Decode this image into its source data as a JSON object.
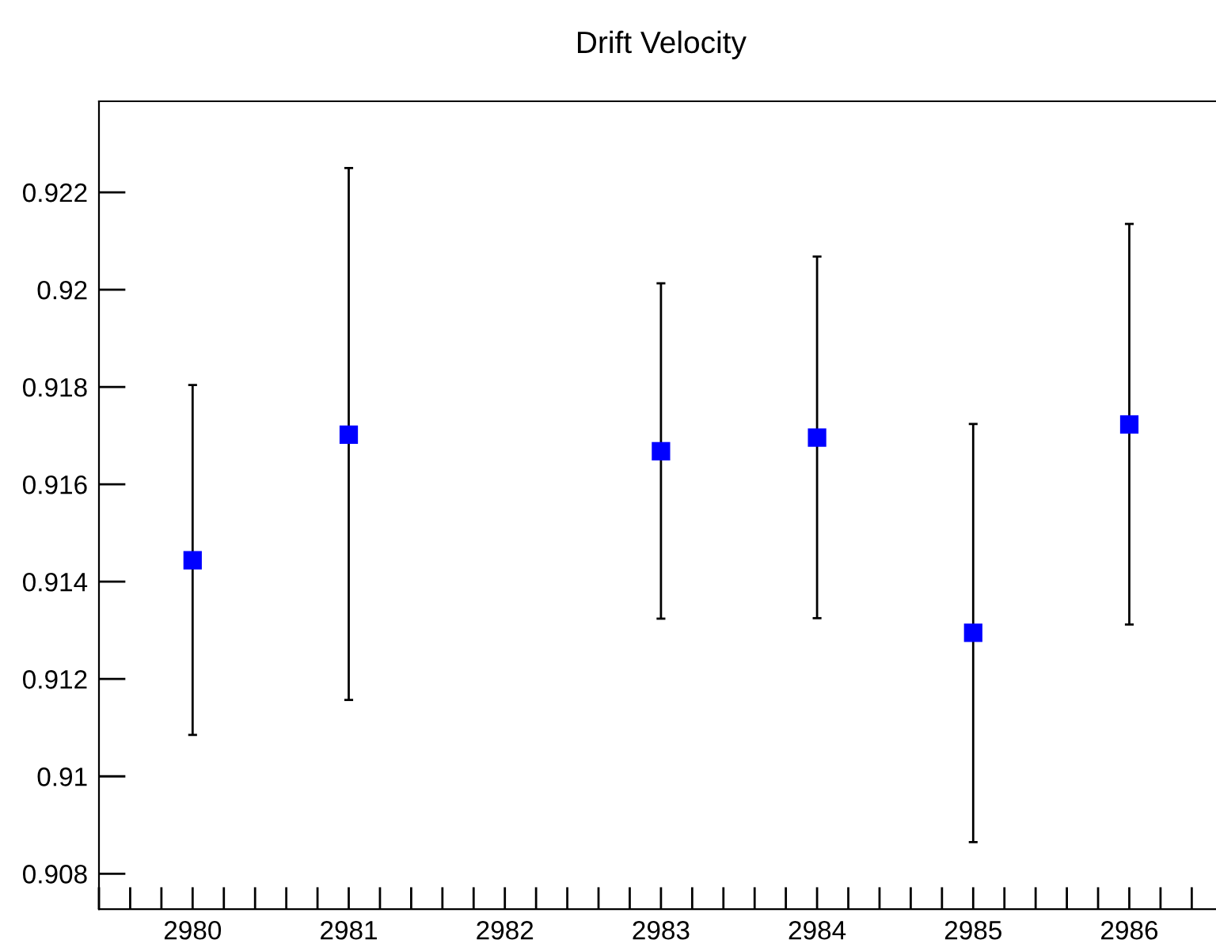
{
  "chart_data": {
    "type": "scatter",
    "title": "Drift Velocity",
    "x": [
      2980,
      2981,
      2983,
      2984,
      2985,
      2986
    ],
    "series": [
      {
        "color": "#0000ff",
        "values": [
          0.91444,
          0.91702,
          0.91668,
          0.91696,
          0.91295,
          0.91723
        ],
        "errors": [
          [
            0.91085,
            0.91804
          ],
          [
            0.91157,
            0.9225
          ],
          [
            0.91324,
            0.92013
          ],
          [
            0.91325,
            0.92068
          ],
          [
            0.90865,
            0.91724
          ],
          [
            0.91312,
            0.92135
          ]
        ]
      }
    ],
    "marker": "square",
    "grid": false,
    "legend": false,
    "xlim": [
      2979.4,
      2986.6
    ],
    "ylim": [
      0.90727,
      0.92387
    ],
    "xticks": [
      {
        "value": 2979.4,
        "label": null
      },
      {
        "value": 2979.6,
        "label": null
      },
      {
        "value": 2979.8,
        "label": null
      },
      2980,
      {
        "value": 2980.2,
        "label": null
      },
      {
        "value": 2980.4,
        "label": null
      },
      {
        "value": 2980.6,
        "label": null
      },
      {
        "value": 2980.8,
        "label": null
      },
      2981,
      {
        "value": 2981.2,
        "label": null
      },
      {
        "value": 2981.4,
        "label": null
      },
      {
        "value": 2981.6,
        "label": null
      },
      {
        "value": 2981.8,
        "label": null
      },
      2982,
      {
        "value": 2982.2,
        "label": null
      },
      {
        "value": 2982.4,
        "label": null
      },
      {
        "value": 2982.6,
        "label": null
      },
      {
        "value": 2982.8,
        "label": null
      },
      2983,
      {
        "value": 2983.2,
        "label": null
      },
      {
        "value": 2983.4,
        "label": null
      },
      {
        "value": 2983.6,
        "label": null
      },
      {
        "value": 2983.8,
        "label": null
      },
      2984,
      {
        "value": 2984.2,
        "label": null
      },
      {
        "value": 2984.4,
        "label": null
      },
      {
        "value": 2984.6,
        "label": null
      },
      {
        "value": 2984.8,
        "label": null
      },
      2985,
      {
        "value": 2985.2,
        "label": null
      },
      {
        "value": 2985.4,
        "label": null
      },
      {
        "value": 2985.6,
        "label": null
      },
      {
        "value": 2985.8,
        "label": null
      },
      2986,
      {
        "value": 2986.2,
        "label": null
      },
      {
        "value": 2986.4,
        "label": null
      }
    ],
    "yticks": [
      0.908,
      0.91,
      0.912,
      0.914,
      0.916,
      0.918,
      0.92,
      0.922
    ]
  }
}
